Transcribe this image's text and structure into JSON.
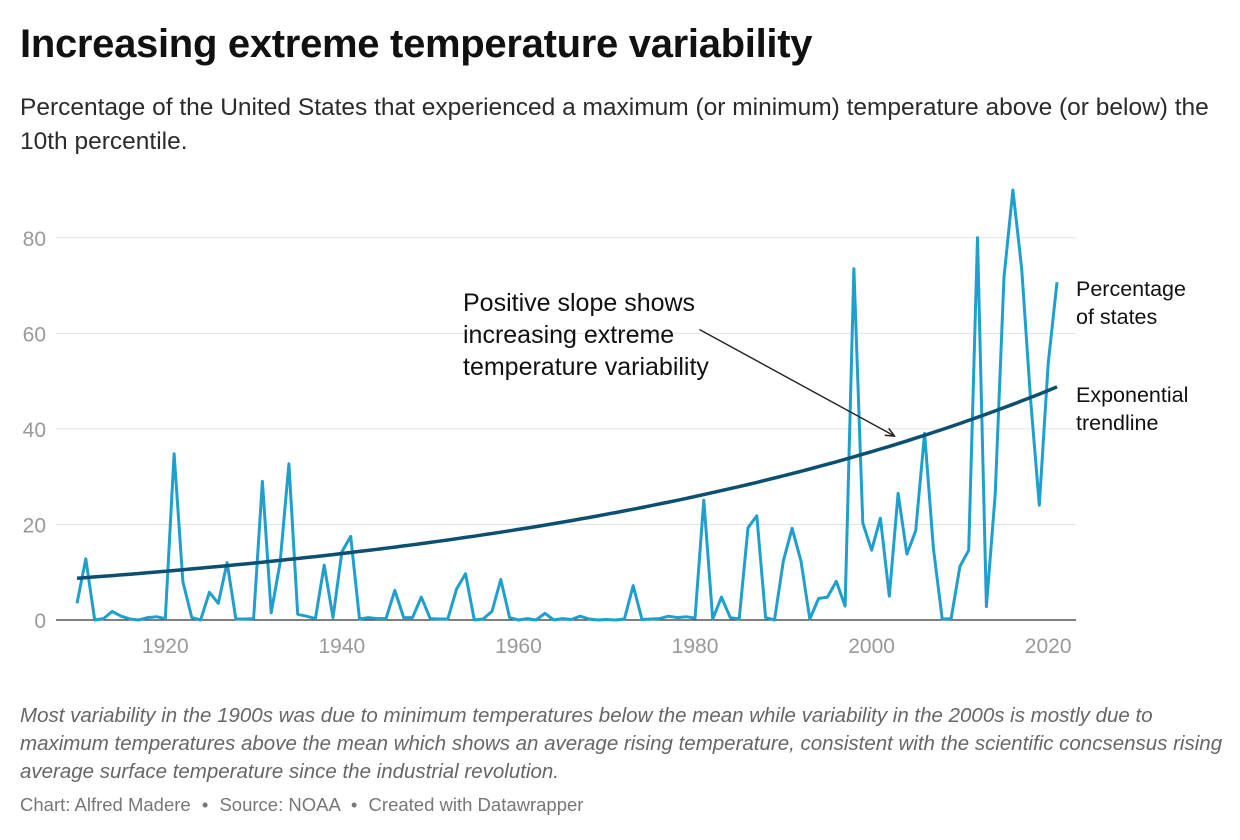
{
  "title": "Increasing extreme temperature variability",
  "subtitle": "Percentage of the United States that experienced a maximum (or minimum) temperature above (or below) the 10th percentile.",
  "notes": "Most variability in the 1900s was due to minimum temperatures below the mean while variability in the 2000s is mostly due to maximum temperatures above the mean which shows an average rising temperature, consistent with the scientific concsensus rising average surface temperature since the industrial revolution.",
  "footer": {
    "chart": "Chart: Alfred Madere",
    "source": "Source: NOAA",
    "created": "Created with Datawrapper",
    "separator": "•"
  },
  "colors": {
    "series": "#1f9fce",
    "trend": "#0b4f71",
    "grid": "#e2e2e2",
    "tick_text": "#999999"
  },
  "chart_data": {
    "type": "line",
    "title": "Increasing extreme temperature variability",
    "xlim": [
      1910,
      2021
    ],
    "ylim": [
      0,
      90
    ],
    "y_ticks": [
      0,
      20,
      40,
      60,
      80
    ],
    "x_ticks": [
      1920,
      1940,
      1960,
      1980,
      2000,
      2020
    ],
    "grid": true,
    "series": [
      {
        "name": "Percentage of states",
        "label_lines": [
          "Percentage",
          "of states"
        ],
        "color": "#1f9fce",
        "x": [
          1910,
          1911,
          1912,
          1913,
          1914,
          1915,
          1916,
          1917,
          1918,
          1919,
          1920,
          1921,
          1922,
          1923,
          1924,
          1925,
          1926,
          1927,
          1928,
          1929,
          1930,
          1931,
          1932,
          1933,
          1934,
          1935,
          1936,
          1937,
          1938,
          1939,
          1940,
          1941,
          1942,
          1943,
          1944,
          1945,
          1946,
          1947,
          1948,
          1949,
          1950,
          1951,
          1952,
          1953,
          1954,
          1955,
          1956,
          1957,
          1958,
          1959,
          1960,
          1961,
          1962,
          1963,
          1964,
          1965,
          1966,
          1967,
          1968,
          1969,
          1970,
          1971,
          1972,
          1973,
          1974,
          1975,
          1976,
          1977,
          1978,
          1979,
          1980,
          1981,
          1982,
          1983,
          1984,
          1985,
          1986,
          1987,
          1988,
          1989,
          1990,
          1991,
          1992,
          1993,
          1994,
          1995,
          1996,
          1997,
          1998,
          1999,
          2000,
          2001,
          2002,
          2003,
          2004,
          2005,
          2006,
          2007,
          2008,
          2009,
          2010,
          2011,
          2012,
          2013,
          2014,
          2015,
          2016,
          2017,
          2018,
          2019,
          2020,
          2021
        ],
        "values": [
          3.5,
          12.8,
          0,
          0.3,
          1.8,
          0.8,
          0.2,
          0,
          0.5,
          0.7,
          0.3,
          34.8,
          8,
          0.5,
          0,
          5.8,
          3.5,
          12,
          0.2,
          0.2,
          0.3,
          29,
          1.5,
          12,
          32.7,
          1.2,
          0.8,
          0.3,
          11.5,
          0.5,
          14.3,
          17.5,
          0.2,
          0.5,
          0.3,
          0.3,
          6.2,
          0.5,
          0.5,
          4.8,
          0.3,
          0.2,
          0.2,
          6.5,
          9.7,
          0,
          0.2,
          1.8,
          8.5,
          0.5,
          0,
          0.3,
          0,
          1.4,
          0,
          0.3,
          0.1,
          0.8,
          0.2,
          0,
          0.1,
          0,
          0.2,
          7.2,
          0.1,
          0.2,
          0.3,
          0.8,
          0.5,
          0.7,
          0.4,
          25.1,
          0.2,
          4.8,
          0.5,
          0.2,
          19.3,
          21.8,
          0.5,
          0,
          12.3,
          19.2,
          12.3,
          0.2,
          4.5,
          4.8,
          8.1,
          2.9,
          73.5,
          20.3,
          14.6,
          21.3,
          5,
          26.5,
          13.8,
          18.7,
          39.1,
          15,
          0.2,
          0.3,
          11.2,
          14.6,
          80,
          2.8,
          26.3,
          71.8,
          90,
          73.5,
          46.4,
          24,
          53.7,
          70.7
        ]
      },
      {
        "name": "Exponential trendline",
        "label_lines": [
          "Exponential",
          "trendline"
        ],
        "color": "#0b4f71",
        "type": "exponential",
        "a": 8.74,
        "b": 0.01549,
        "x0": 1910
      }
    ],
    "annotation": {
      "lines": [
        "Positive slope shows",
        "increasing extreme",
        "temperature variability"
      ],
      "arrow_from": [
        1980.5,
        60.8
      ],
      "arrow_to": [
        2002.5,
        38.6
      ]
    }
  }
}
